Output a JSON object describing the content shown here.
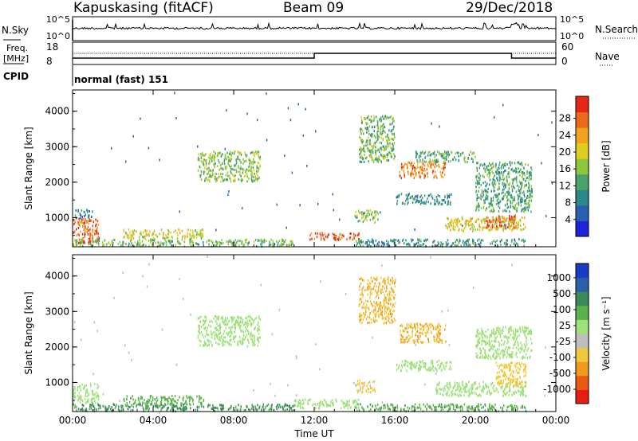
{
  "header": {
    "station": "Kapuskasing (fitACF)",
    "beam": "Beam 09",
    "date": "29/Dec/2018"
  },
  "top_panels": {
    "nsky_label": "N.Sky",
    "nsky_ticks": [
      "10^5",
      "10^0"
    ],
    "nsearch_label": "N.Search",
    "nsearch_ticks": [
      "10^5",
      "10^0"
    ],
    "freq_label": "Freq.",
    "freq_unit": "[MHz]",
    "freq_ticks": [
      "18",
      "8"
    ],
    "nave_label": "Nave",
    "nave_ticks": [
      "60",
      "0"
    ],
    "cpid_label": "CPID",
    "cpid_value": "normal (fast) 151"
  },
  "chart_data": [
    {
      "type": "heatmap",
      "name": "power",
      "ylabel": "Slant Range [km]",
      "xlabel": "",
      "y_ticks": [
        "1000",
        "2000",
        "3000",
        "4000"
      ],
      "ylim": [
        180,
        4600
      ],
      "x_ticks": [
        "00:00",
        "04:00",
        "08:00",
        "12:00",
        "16:00",
        "20:00",
        "00:00"
      ],
      "colorbar": {
        "label": "Power [dB]",
        "ticks": [
          "4",
          "8",
          "12",
          "16",
          "20",
          "24",
          "28"
        ],
        "colors": [
          "#1e22d8",
          "#285fb0",
          "#2a8a8a",
          "#4aa36a",
          "#8dc83c",
          "#e0cc20",
          "#f2a21c",
          "#ea6a1a",
          "#e62616"
        ]
      },
      "regions": [
        {
          "t": [
            0.0,
            1.3
          ],
          "r": [
            300,
            1000
          ],
          "v": 27
        },
        {
          "t": [
            0.1,
            1.0
          ],
          "r": [
            1000,
            1250
          ],
          "v": 8
        },
        {
          "t": [
            0.0,
            11.0
          ],
          "r": [
            220,
            420
          ],
          "v": 14
        },
        {
          "t": [
            2.5,
            6.5
          ],
          "r": [
            450,
            700
          ],
          "v": 18
        },
        {
          "t": [
            6.2,
            9.3
          ],
          "r": [
            2050,
            2900
          ],
          "v": 15
        },
        {
          "t": [
            11.7,
            14.2
          ],
          "r": [
            400,
            600
          ],
          "v": 27
        },
        {
          "t": [
            14.0,
            22.5
          ],
          "r": [
            220,
            420
          ],
          "v": 10
        },
        {
          "t": [
            14.0,
            15.2
          ],
          "r": [
            900,
            1250
          ],
          "v": 16
        },
        {
          "t": [
            14.2,
            16.0
          ],
          "r": [
            2600,
            3900
          ],
          "v": 14
        },
        {
          "t": [
            16.2,
            18.5
          ],
          "r": [
            2150,
            2600
          ],
          "v": 25
        },
        {
          "t": [
            16.0,
            18.8
          ],
          "r": [
            1400,
            1700
          ],
          "v": 10
        },
        {
          "t": [
            17.0,
            20.0
          ],
          "r": [
            2600,
            2900
          ],
          "v": 12
        },
        {
          "t": [
            18.5,
            22.5
          ],
          "r": [
            650,
            1050
          ],
          "v": 20
        },
        {
          "t": [
            20.5,
            22.0
          ],
          "r": [
            750,
            1100
          ],
          "v": 28
        },
        {
          "t": [
            20.0,
            22.8
          ],
          "r": [
            1200,
            2600
          ],
          "v": 12
        }
      ]
    },
    {
      "type": "heatmap",
      "name": "velocity",
      "ylabel": "Slant Range [km]",
      "xlabel": "Time UT",
      "y_ticks": [
        "1000",
        "2000",
        "3000",
        "4000"
      ],
      "ylim": [
        180,
        4600
      ],
      "x_ticks": [
        "00:00",
        "04:00",
        "08:00",
        "12:00",
        "16:00",
        "20:00",
        "00:00"
      ],
      "colorbar": {
        "label": "Velocity [m s⁻¹]",
        "ticks": [
          "1000",
          "500",
          "100",
          "25",
          "-25",
          "-100",
          "-500",
          "-1000"
        ],
        "colors": [
          "#1a3cc2",
          "#2a60aa",
          "#3a8a5a",
          "#5cb24a",
          "#9ee07a",
          "#bebebe",
          "#f0c83a",
          "#f09a20",
          "#ea5a12",
          "#e61d12"
        ]
      },
      "regions": [
        {
          "t": [
            0.0,
            1.3
          ],
          "r": [
            450,
            1000
          ],
          "v": 0
        },
        {
          "t": [
            0.0,
            11.0
          ],
          "r": [
            220,
            420
          ],
          "v": 120
        },
        {
          "t": [
            2.5,
            6.5
          ],
          "r": [
            400,
            650
          ],
          "v": 60
        },
        {
          "t": [
            6.2,
            9.3
          ],
          "r": [
            2050,
            2900
          ],
          "v": 5
        },
        {
          "t": [
            11.0,
            14.2
          ],
          "r": [
            300,
            550
          ],
          "v": 0
        },
        {
          "t": [
            14.0,
            15.0
          ],
          "r": [
            750,
            1100
          ],
          "v": -120
        },
        {
          "t": [
            14.2,
            16.0
          ],
          "r": [
            2700,
            4000
          ],
          "v": -450
        },
        {
          "t": [
            16.2,
            18.5
          ],
          "r": [
            2150,
            2700
          ],
          "v": -500
        },
        {
          "t": [
            16.0,
            18.8
          ],
          "r": [
            1350,
            1650
          ],
          "v": 0
        },
        {
          "t": [
            18.0,
            22.5
          ],
          "r": [
            650,
            1050
          ],
          "v": 0
        },
        {
          "t": [
            21.0,
            22.5
          ],
          "r": [
            900,
            1600
          ],
          "v": -200
        },
        {
          "t": [
            20.0,
            22.8
          ],
          "r": [
            1700,
            2600
          ],
          "v": 0
        },
        {
          "t": [
            14.0,
            22.5
          ],
          "r": [
            220,
            420
          ],
          "v": 80
        }
      ]
    }
  ]
}
